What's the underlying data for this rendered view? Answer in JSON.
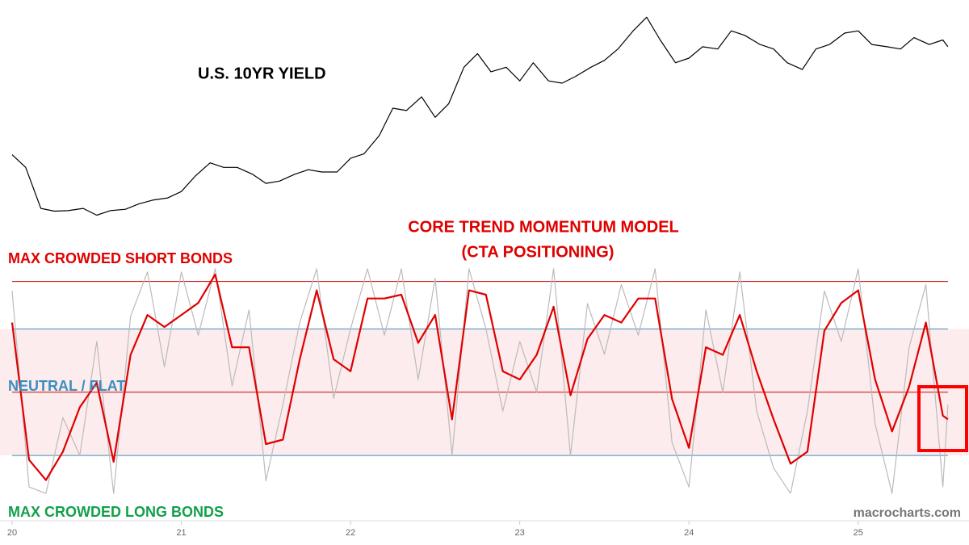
{
  "chart_data": [
    {
      "type": "line",
      "title": "U.S. 10YR YIELD",
      "x": [
        20,
        20.08,
        20.17,
        20.25,
        20.33,
        20.42,
        20.5,
        20.58,
        20.67,
        20.75,
        20.83,
        20.92,
        21,
        21.08,
        21.17,
        21.25,
        21.33,
        21.42,
        21.5,
        21.58,
        21.67,
        21.75,
        21.83,
        21.92,
        22,
        22.08,
        22.17,
        22.25,
        22.33,
        22.42,
        22.5,
        22.58,
        22.67,
        22.75,
        22.83,
        22.92,
        23,
        23.08,
        23.17,
        23.25,
        23.33,
        23.42,
        23.5,
        23.58,
        23.67,
        23.75,
        23.83,
        23.92,
        24,
        24.08,
        24.17,
        24.25,
        24.33,
        24.42,
        24.5,
        24.58,
        24.67,
        24.75,
        24.83,
        24.92,
        25,
        25.08,
        25.17,
        25.25,
        25.33,
        25.42,
        25.5,
        25.53
      ],
      "series": [
        {
          "color": "#000000",
          "values": [
            1.88,
            1.6,
            0.7,
            0.64,
            0.65,
            0.7,
            0.55,
            0.65,
            0.68,
            0.8,
            0.88,
            0.93,
            1.07,
            1.4,
            1.7,
            1.6,
            1.6,
            1.45,
            1.25,
            1.3,
            1.45,
            1.55,
            1.5,
            1.5,
            1.8,
            1.9,
            2.3,
            2.9,
            2.85,
            3.15,
            2.7,
            3.0,
            3.8,
            4.1,
            3.7,
            3.8,
            3.5,
            3.9,
            3.5,
            3.45,
            3.6,
            3.8,
            3.95,
            4.2,
            4.6,
            4.9,
            4.4,
            3.9,
            4.0,
            4.25,
            4.2,
            4.6,
            4.5,
            4.3,
            4.2,
            3.9,
            3.75,
            4.2,
            4.3,
            4.55,
            4.6,
            4.3,
            4.25,
            4.2,
            4.45,
            4.3,
            4.4,
            4.25
          ]
        }
      ],
      "xlim": [
        20,
        25.65
      ],
      "ylim": [
        0.4,
        5.1
      ]
    },
    {
      "type": "line",
      "title": "CORE TREND MOMENTUM MODEL",
      "subtitle": "(CTA POSITIONING)",
      "x": [
        20,
        20.1,
        20.2,
        20.3,
        20.4,
        20.5,
        20.6,
        20.7,
        20.8,
        20.9,
        21,
        21.1,
        21.2,
        21.3,
        21.4,
        21.5,
        21.6,
        21.7,
        21.8,
        21.9,
        22,
        22.1,
        22.2,
        22.3,
        22.4,
        22.5,
        22.6,
        22.7,
        22.8,
        22.9,
        23,
        23.1,
        23.2,
        23.3,
        23.4,
        23.5,
        23.6,
        23.7,
        23.8,
        23.9,
        24,
        24.1,
        24.2,
        24.3,
        24.4,
        24.5,
        24.6,
        24.7,
        24.8,
        24.9,
        25,
        25.1,
        25.2,
        25.3,
        25.4,
        25.5,
        25.53
      ],
      "series": [
        {
          "color": "#bbbbbb",
          "values": [
            1.6,
            -1.5,
            -1.6,
            -0.4,
            -1.0,
            0.8,
            -1.6,
            1.2,
            1.9,
            0.4,
            1.9,
            0.9,
            1.95,
            0.1,
            1.3,
            -1.4,
            -0.2,
            1.1,
            1.95,
            -0.1,
            1.0,
            1.95,
            0.9,
            1.95,
            0.2,
            1.8,
            -1.0,
            1.95,
            1.0,
            -0.3,
            0.8,
            0.0,
            1.95,
            -1.0,
            1.4,
            0.6,
            1.7,
            0.9,
            1.95,
            -0.8,
            -1.5,
            1.3,
            0.0,
            1.9,
            -0.3,
            -1.2,
            -1.6,
            -0.3,
            1.6,
            0.8,
            1.95,
            -0.5,
            -1.6,
            0.7,
            1.7,
            -1.5,
            -0.2
          ]
        },
        {
          "color": "#e00000",
          "values": [
            1.1,
            -1.07,
            -1.39,
            -0.94,
            -0.24,
            0.15,
            -1.1,
            0.59,
            1.22,
            1.03,
            1.22,
            1.41,
            1.86,
            0.71,
            0.71,
            -0.82,
            -0.75,
            0.52,
            1.61,
            0.52,
            0.33,
            1.48,
            1.48,
            1.54,
            0.78,
            1.22,
            -0.43,
            1.61,
            1.54,
            0.33,
            0.2,
            0.59,
            1.35,
            -0.05,
            0.84,
            1.22,
            1.1,
            1.48,
            1.48,
            -0.11,
            -0.88,
            0.71,
            0.59,
            1.22,
            0.33,
            -0.43,
            -1.13,
            -0.94,
            0.97,
            1.41,
            1.61,
            0.2,
            -0.62,
            0.08,
            1.1,
            -0.37,
            -0.43
          ]
        }
      ],
      "xlim": [
        20,
        25.65
      ],
      "ylim": [
        -1.65,
        2.0
      ],
      "xticks": [
        20,
        21,
        22,
        23,
        24,
        25
      ],
      "band": [
        -1,
        1
      ],
      "band_color": "#fdeced",
      "reference_lines": [
        {
          "value": 1.75,
          "color": "#d00000"
        },
        {
          "value": 1,
          "color": "#3a8fb7"
        },
        {
          "value": 0,
          "color": "#d00000"
        },
        {
          "value": -1,
          "color": "#3a8fb7"
        }
      ],
      "annotations": [
        {
          "text": "MAX CROWDED SHORT BONDS",
          "color": "#e00000"
        },
        {
          "text": "NEUTRAL / FLAT",
          "color": "#3a8fc0"
        },
        {
          "text": "MAX CROWDED LONG BONDS",
          "color": "#12a04a"
        }
      ],
      "watermark": "macrocharts.com"
    }
  ]
}
